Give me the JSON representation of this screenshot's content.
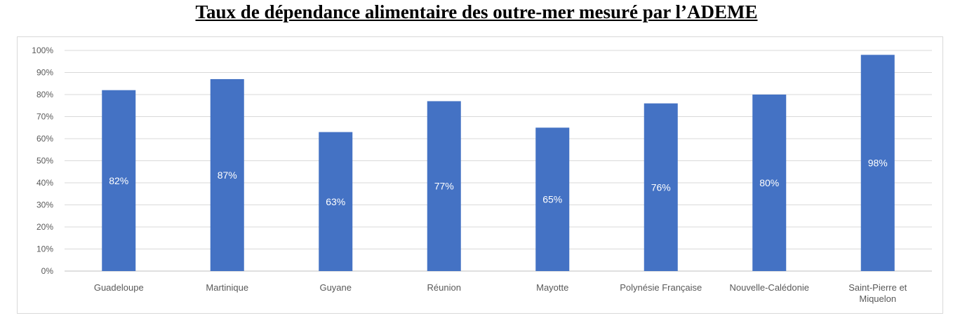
{
  "title": "Taux de dépendance alimentaire des outre-mer mesuré par l’ADEME",
  "chart_data": {
    "type": "bar",
    "title": "",
    "xlabel": "",
    "ylabel": "",
    "categories": [
      "Guadeloupe",
      "Martinique",
      "Guyane",
      "Réunion",
      "Mayotte",
      "Polynésie Française",
      "Nouvelle-Calédonie",
      "Saint-Pierre et Miquelon"
    ],
    "values": [
      82,
      87,
      63,
      77,
      65,
      76,
      80,
      98
    ],
    "value_labels": [
      "82%",
      "87%",
      "63%",
      "77%",
      "65%",
      "76%",
      "80%",
      "98%"
    ],
    "ylim": [
      0,
      100
    ],
    "y_ticks": [
      "0%",
      "10%",
      "20%",
      "30%",
      "40%",
      "50%",
      "60%",
      "70%",
      "80%",
      "90%",
      "100%"
    ],
    "grid": true,
    "legend": "none",
    "bar_color": "#4472c4"
  }
}
